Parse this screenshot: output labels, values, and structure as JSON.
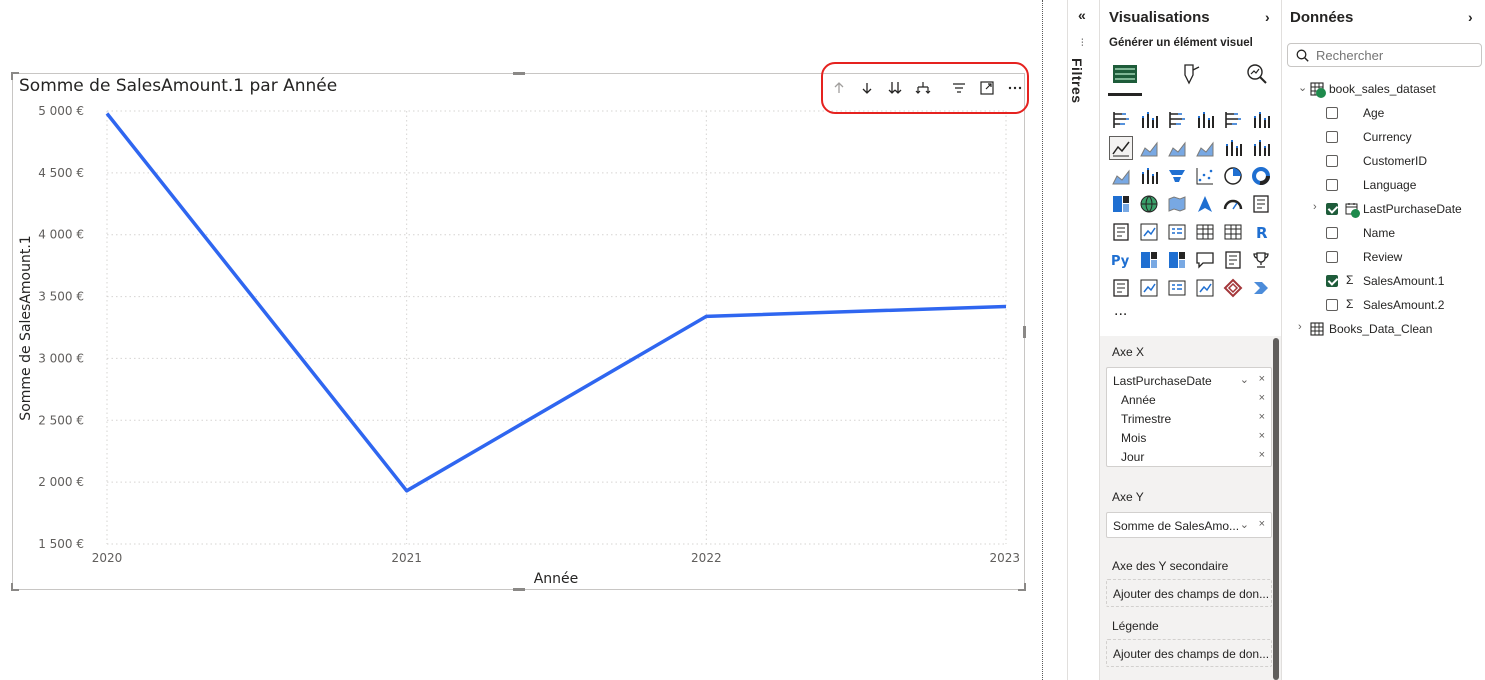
{
  "visual": {
    "title": "Somme de SalesAmount.1 par Année",
    "header_icons": [
      "up-arrow-icon",
      "down-arrow-icon",
      "double-down-arrow-icon",
      "expand-hierarchy-icon",
      "filter-icon",
      "focus-mode-icon",
      "more-options-icon"
    ],
    "highlight_color": "#e5221f"
  },
  "chart_data": {
    "type": "line",
    "title": "Somme de SalesAmount.1 par Année",
    "xlabel": "Année",
    "ylabel": "Somme de SalesAmount.1",
    "categories": [
      "2020",
      "2021",
      "2022",
      "2023"
    ],
    "series": [
      {
        "values": [
          4980,
          1930,
          3340,
          3420
        ],
        "color": "#2f66f0"
      }
    ],
    "ylim": [
      1500,
      5000
    ],
    "yticks": [
      1500,
      2000,
      2500,
      3000,
      3500,
      4000,
      4500,
      5000
    ],
    "ytick_labels": [
      "1 500 €",
      "2 000 €",
      "2 500 €",
      "3 000 €",
      "3 500 €",
      "4 000 €",
      "4 500 €",
      "5 000 €"
    ],
    "grid": true
  },
  "filters": {
    "label": "Filtres"
  },
  "visualizations": {
    "title": "Visualisations",
    "subtitle": "Générer un élément visuel",
    "more_label": "...",
    "wells": {
      "x_axis": {
        "title": "Axe X",
        "field": "LastPurchaseDate",
        "sub_fields": [
          "Année",
          "Trimestre",
          "Mois",
          "Jour"
        ]
      },
      "y_axis": {
        "title": "Axe Y",
        "field": "Somme de SalesAmo..."
      },
      "secondary_y": {
        "title": "Axe des Y secondaire",
        "placeholder": "Ajouter des champs de don..."
      },
      "legend": {
        "title": "Légende",
        "placeholder": "Ajouter des champs de don..."
      }
    }
  },
  "data": {
    "title": "Données",
    "search_placeholder": "Rechercher",
    "tables": [
      {
        "name": "book_sales_dataset",
        "expanded": true,
        "fields": [
          {
            "name": "Age",
            "checked": false
          },
          {
            "name": "Currency",
            "checked": false
          },
          {
            "name": "CustomerID",
            "checked": false
          },
          {
            "name": "Language",
            "checked": false
          },
          {
            "name": "LastPurchaseDate",
            "checked": true
          },
          {
            "name": "Name",
            "checked": false
          },
          {
            "name": "Review",
            "checked": false
          },
          {
            "name": "SalesAmount.1",
            "checked": true
          },
          {
            "name": "SalesAmount.2",
            "checked": false
          }
        ]
      },
      {
        "name": "Books_Data_Clean",
        "expanded": false
      }
    ]
  }
}
